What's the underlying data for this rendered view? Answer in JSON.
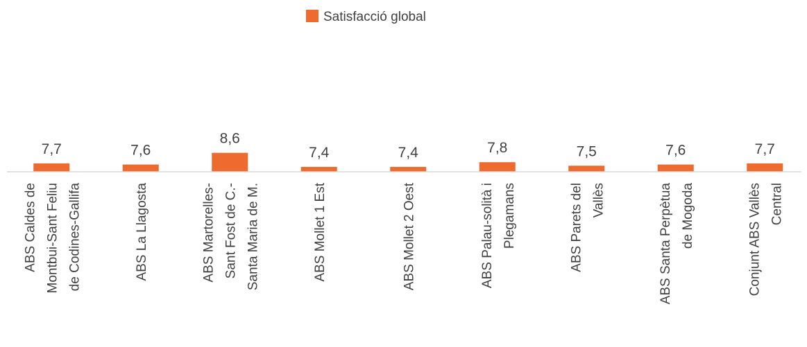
{
  "chart_data": {
    "type": "bar",
    "categories": [
      [
        "ABS Caldes de",
        "Montbui-Sant Feliu",
        "de Codines-Gallifa"
      ],
      [
        "ABS La Llagosta"
      ],
      [
        "ABS Martorelles-",
        "Sant Fost de C.-",
        "Santa Maria de M."
      ],
      [
        "ABS Mollet 1 Est"
      ],
      [
        "ABS Mollet 2 Oest"
      ],
      [
        "ABS Palau-solità i",
        "Plegamans"
      ],
      [
        "ABS Parets del",
        "Vallès"
      ],
      [
        "ABS Santa Perpètua",
        "de Mogoda"
      ],
      [
        "Conjunt ABS Vallès",
        "Central"
      ]
    ],
    "series": [
      {
        "name": "Satisfacció global",
        "color": "#ED6B2F",
        "values": [
          7.7,
          7.6,
          8.6,
          7.4,
          7.4,
          7.8,
          7.5,
          7.6,
          7.7
        ],
        "labels": [
          "7,7",
          "7,6",
          "8,6",
          "7,4",
          "7,4",
          "7,8",
          "7,5",
          "7,6",
          "7,7"
        ]
      }
    ],
    "legend_position": "top-center",
    "grid": false,
    "baseline_color": "#D9D9D9"
  }
}
